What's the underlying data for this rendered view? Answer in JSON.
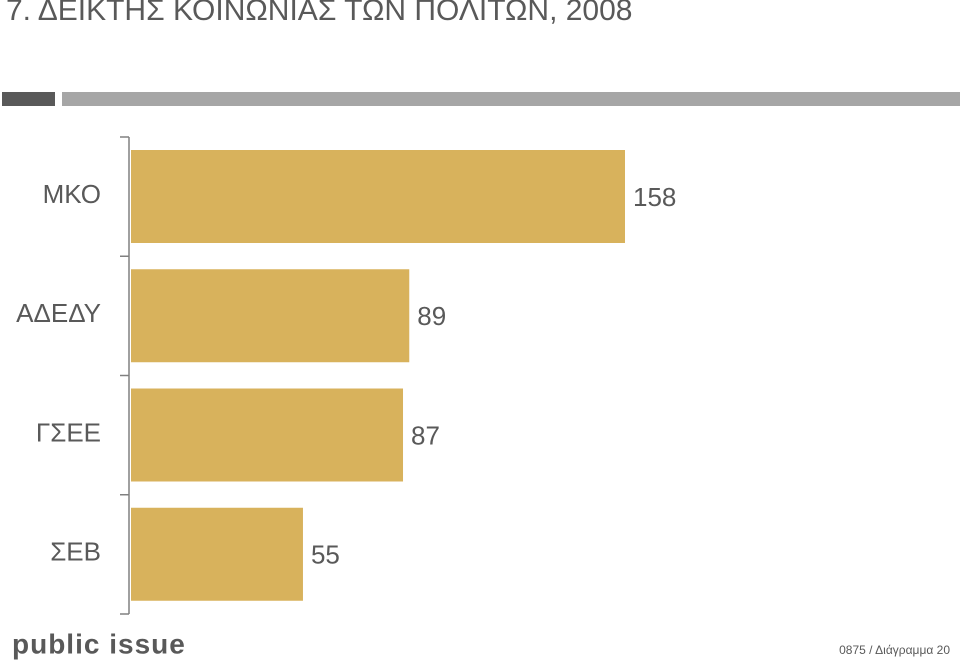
{
  "chart_data": {
    "type": "bar",
    "orientation": "horizontal",
    "title": "7. ΔΕΙΚΤΗΣ ΚΟΙΝΩΝΙΑΣ ΤΩΝ ΠΟΛΙΤΩΝ, 2008",
    "categories": [
      "ΜΚΟ",
      "ΑΔΕΔΥ",
      "ΓΣΕΕ",
      "ΣΕΒ"
    ],
    "values": [
      158,
      89,
      87,
      55
    ],
    "color": "#d8b25c"
  },
  "logo": "public issue",
  "footer": "0875 / Διάγραμμα 20"
}
